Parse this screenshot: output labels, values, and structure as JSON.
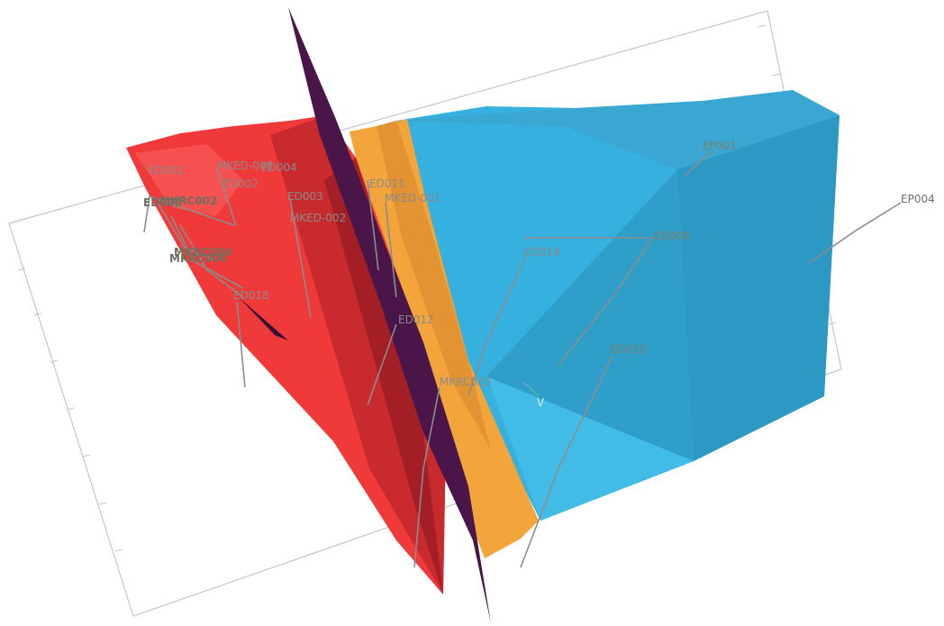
{
  "scene": {
    "colors": {
      "red_body": "#ef3a3a",
      "red_dark": "#a61f26",
      "fault_plane": "#4a1548",
      "orange_body": "#f2a23c",
      "blue_body": "#2fa9d6",
      "blue_dark": "#268fb6",
      "frame": "#c6c6c6",
      "trace": "#8c8c8c"
    },
    "axis_label": "V",
    "labels": [
      "ED001",
      "MKED-008",
      "ED004",
      "ED002",
      "ED003",
      "MKED-002",
      "ED011",
      "MKED-001",
      "ED005",
      "MKRC002",
      "MKRC004",
      "MKRC006",
      "ED018",
      "ED012",
      "MKRC023",
      "ED014",
      "ED009",
      "ED010",
      "EP001",
      "EP004"
    ]
  }
}
